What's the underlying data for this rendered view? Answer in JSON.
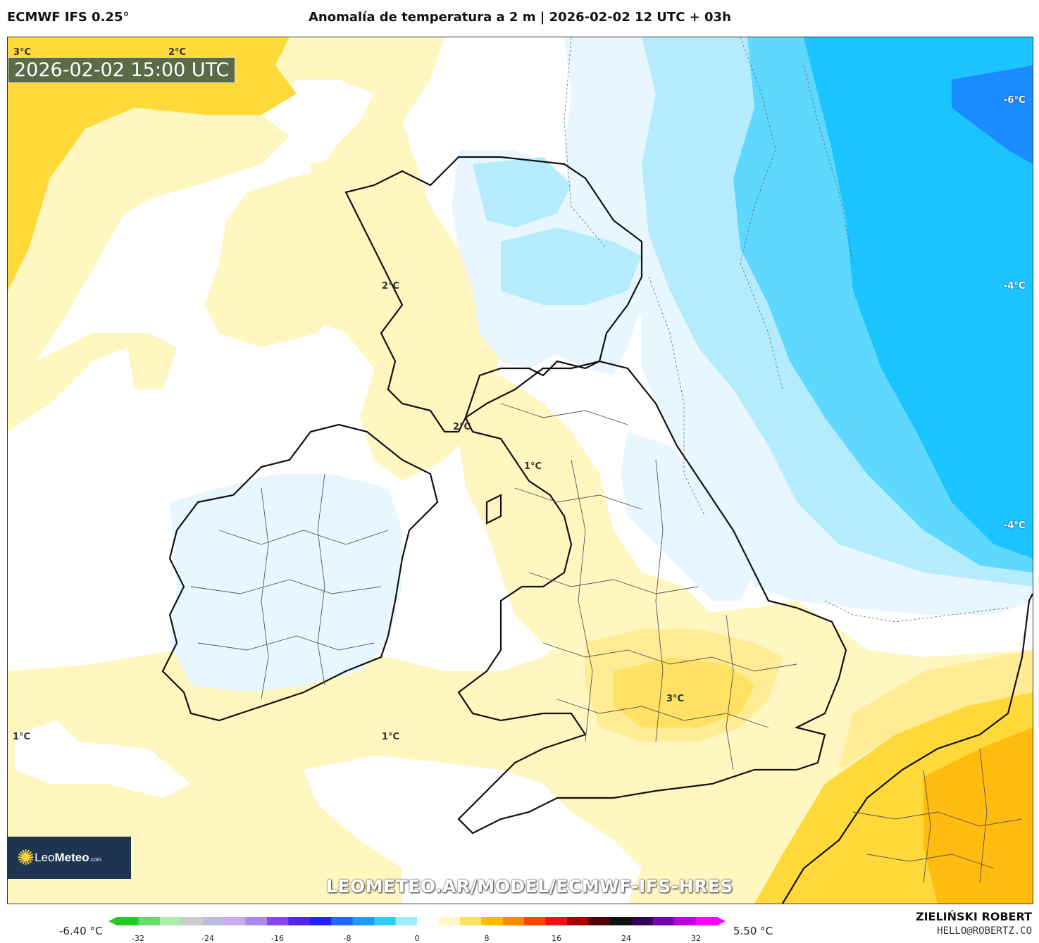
{
  "header": {
    "model": "ECMWF IFS 0.25°",
    "title": "Anomalía de temperatura a 2 m | 2026-02-02 12 UTC + 03h"
  },
  "valid_time": "2026-02-02 15:00 UTC",
  "contour_labels": [
    {
      "text": "3°C"
    },
    {
      "text": "2°C"
    },
    {
      "text": "-6°C"
    },
    {
      "text": "-4°C"
    },
    {
      "text": "2°C"
    },
    {
      "text": "2°C"
    },
    {
      "text": "1°C"
    },
    {
      "text": "-4°C"
    },
    {
      "text": "3°C"
    },
    {
      "text": "1°C"
    },
    {
      "text": "1°C"
    }
  ],
  "logo": {
    "brand_light": "Leo",
    "brand_bold": "Meteo",
    "suffix": ".com"
  },
  "watermark": "LEOMETEO.AR/MODEL/ECMWF-IFS-HRES",
  "colorbar": {
    "min_label": "-6.40 °C",
    "max_label": "5.50 °C",
    "ticks": [
      "-32",
      "-24",
      "-16",
      "-8",
      "0",
      "8",
      "16",
      "24",
      "32"
    ],
    "colors": [
      "#22cc22",
      "#66dd66",
      "#aaeeaa",
      "#cccccc",
      "#bbbbdd",
      "#ccaaee",
      "#aa88ee",
      "#8844ee",
      "#5522ee",
      "#2222ff",
      "#2266ff",
      "#2299ff",
      "#33ccff",
      "#99eeff",
      "#ffffff",
      "#fff8c8",
      "#ffe066",
      "#ffbb00",
      "#ff8800",
      "#ff4400",
      "#ee1111",
      "#aa0000",
      "#550000",
      "#111111",
      "#330055",
      "#7700aa",
      "#bb00dd",
      "#ff00ff"
    ]
  },
  "credits": {
    "name": "ZIELIŃSKI ROBERT",
    "email": "HELLO@ROBERTZ.CO"
  },
  "colors": {
    "warm_pale": "#fff6c0",
    "warm_light": "#ffec94",
    "warm_mid": "#ffd93a",
    "warm_strong": "#ffb000",
    "cold_pale": "#e8f7ff",
    "cold_light": "#b4ecfd",
    "cold_mid": "#5fd8ff",
    "cold_strong": "#1cc4ff",
    "cold_deep": "#1a8cff",
    "coast": "#111111",
    "border": "#555555"
  }
}
